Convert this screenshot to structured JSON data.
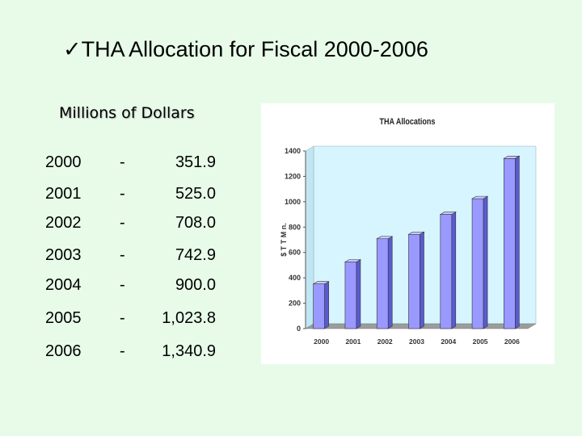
{
  "slide": {
    "title": "THA Allocation for Fiscal 2000-2006",
    "checkmark": "ü",
    "subtitle": "Millions of Dollars"
  },
  "table": {
    "dash": "-",
    "rows": [
      {
        "year": "2000",
        "value": "351.9"
      },
      {
        "year": "2001",
        "value": "525.0"
      },
      {
        "year": "2002",
        "value": "708.0"
      },
      {
        "year": "2003",
        "value": "742.9"
      },
      {
        "year": "2004",
        "value": "900.0"
      },
      {
        "year": "2005",
        "value": "1,023.8"
      },
      {
        "year": "2006",
        "value": "1,340.9"
      }
    ]
  },
  "chart_data": {
    "type": "bar",
    "title": "THA Allocations",
    "ylabel": "$ T T   M n.",
    "xlabel": "",
    "categories": [
      "2000",
      "2001",
      "2002",
      "2003",
      "2004",
      "2005",
      "2006"
    ],
    "values": [
      351.9,
      525.0,
      708.0,
      742.9,
      900.0,
      1023.8,
      1340.9
    ],
    "yticks": [
      0,
      200,
      400,
      600,
      800,
      1000,
      1200,
      1400
    ],
    "ylim": [
      0,
      1400
    ],
    "grid": false,
    "legend": "none",
    "style": "3d",
    "colors": {
      "bar_front": "#9999ff",
      "bar_top": "#c8c8ff",
      "bar_side": "#5a5ad0",
      "wall_back": "#d6f5ff",
      "wall_side": "#bfe6f2",
      "floor": "#9c9c9c"
    }
  }
}
